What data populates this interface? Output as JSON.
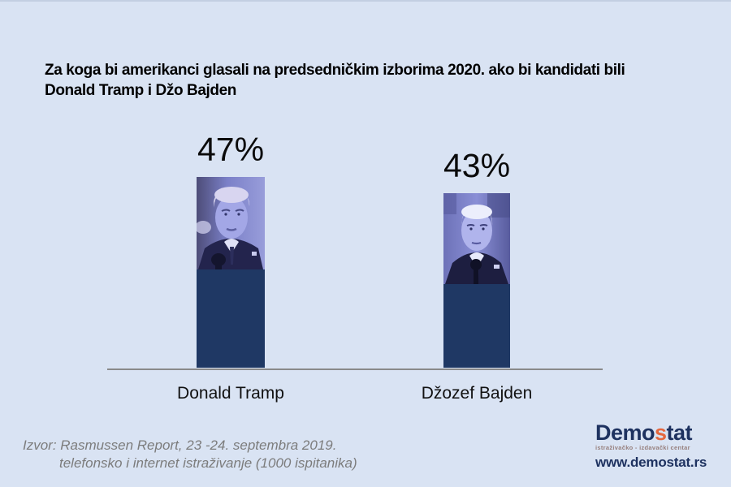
{
  "title": {
    "line1": "Za koga bi amerikanci glasali na predsedničkim izborima 2020. ako bi kandidati bili",
    "line2": "Donald Tramp i Džo Bajden"
  },
  "chart_data": {
    "type": "bar",
    "title": "Za koga bi amerikanci glasali na predsedničkim izborima 2020. ako bi kandidati bili Donald Tramp i Džo Bajden",
    "categories": [
      "Donald Tramp",
      "Džozef Bajden"
    ],
    "values": [
      47,
      43
    ],
    "value_labels": [
      "47%",
      "43%"
    ],
    "unit": "%",
    "ylim": [
      0,
      50
    ],
    "grid": false,
    "legend": "none",
    "bar_color": "#1f3864",
    "axis_line_color": "#8a8a8a",
    "background_color": "#d9e3f3",
    "bar_images": [
      "donald-tramp-portrait",
      "dzozef-bajden-portrait"
    ]
  },
  "source": {
    "line1": "Izvor: Rasmussen Report, 23 -24. septembra 2019.",
    "line2": "telefonsko i internet istraživanje (1000 ispitanika)"
  },
  "logo": {
    "name_prefix": "Demo",
    "name_accent": "s",
    "name_suffix": "tat",
    "tagline": "istraživačko - izdavački centar",
    "website": "www.demostat.rs",
    "navy_color": "#1e3260",
    "accent_color": "#e4673e"
  }
}
